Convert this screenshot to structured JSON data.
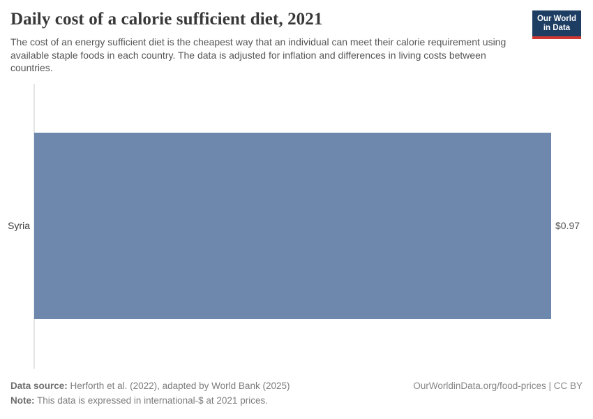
{
  "header": {
    "title": "Daily cost of a calorie sufficient diet, 2021",
    "subtitle": "The cost of an energy sufficient diet is the cheapest way that an individual can meet their calorie requirement using available staple foods in each country. The data is adjusted for inflation and differences in living costs between countries.",
    "logo": {
      "line1": "Our World",
      "line2": "in Data"
    }
  },
  "chart": {
    "entity_label": "Syria",
    "value_label": "$0.97"
  },
  "chart_data": {
    "type": "bar",
    "orientation": "horizontal",
    "title": "Daily cost of a calorie sufficient diet, 2021",
    "subtitle": "The cost of an energy sufficient diet is the cheapest way that an individual can meet their calorie requirement using available staple foods in each country. The data is adjusted for inflation and differences in living costs between countries.",
    "categories": [
      "Syria"
    ],
    "values": [
      0.97
    ],
    "value_labels": [
      "$0.97"
    ],
    "unit": "international-$ at 2021 prices",
    "xlim": [
      0,
      0.97
    ],
    "grid": false,
    "legend": false
  },
  "footer": {
    "data_source_label": "Data source:",
    "data_source_text": "Herforth et al. (2022), adapted by World Bank (2025)",
    "note_label": "Note:",
    "note_text": "This data is expressed in international-$ at 2021 prices.",
    "citation": "OurWorldinData.org/food-prices | CC BY"
  },
  "colors": {
    "bar": "#6d87ad",
    "logo_background": "#1d3d63",
    "logo_stripe": "#d13832"
  }
}
